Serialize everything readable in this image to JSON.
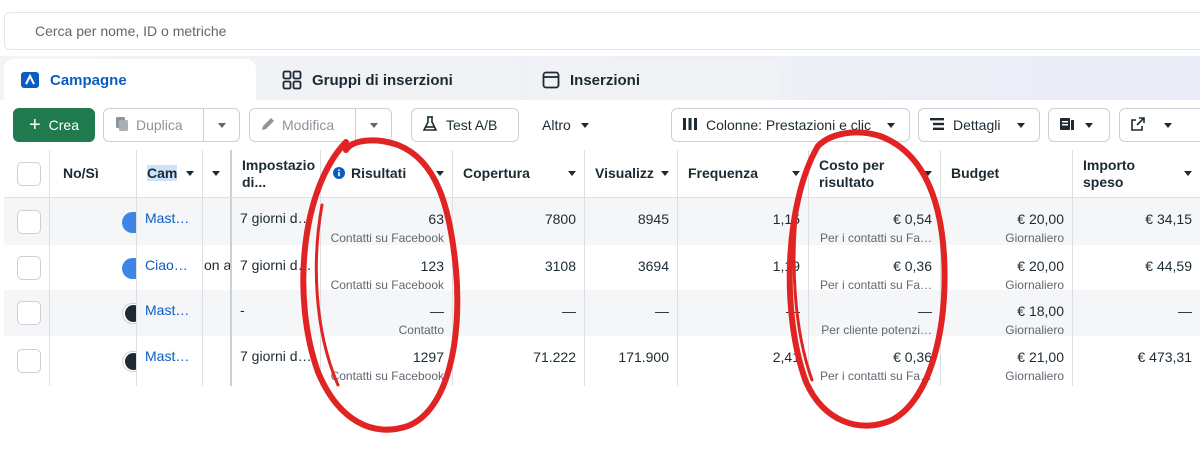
{
  "search": {
    "placeholder": "Cerca per nome, ID o metriche"
  },
  "tabs": [
    {
      "label": "Campagne",
      "icon": "campaign-icon",
      "active": true
    },
    {
      "label": "Gruppi di inserzioni",
      "icon": "grid-icon",
      "active": false
    },
    {
      "label": "Inserzioni",
      "icon": "ad-window-icon",
      "active": false
    }
  ],
  "toolbar": {
    "create_label": "Crea",
    "duplicate_label": "Duplica",
    "edit_label": "Modifica",
    "abtest_label": "Test A/B",
    "more_label": "Altro",
    "columns_label": "Colonne: Prestazioni e clic",
    "details_label": "Dettagli"
  },
  "columns": {
    "toggle": "No/Sì",
    "name": "Cam",
    "settings_line1": "Impostazio",
    "settings_line2": "di...",
    "results": "Risultati",
    "reach": "Copertura",
    "impressions": "Visualizz",
    "frequency": "Frequenza",
    "cpr_line1": "Costo per",
    "cpr_line2": "risultato",
    "budget": "Budget",
    "spent": "Importo speso"
  },
  "rows": [
    {
      "on": true,
      "name": "Mast…",
      "extra": "",
      "settings": "7 giorni d…",
      "results": "63",
      "results_sub": "Contatti su Facebook",
      "reach": "7800",
      "impressions": "8945",
      "frequency": "1,15",
      "cpr": "€ 0,54",
      "cpr_sub": "Per i contatti su Fa…",
      "budget": "€ 20,00",
      "budget_sub": "Giornaliero",
      "spent": "€ 34,15"
    },
    {
      "on": true,
      "name": "Ciao…",
      "extra": "on a",
      "settings": "7 giorni d…",
      "results": "123",
      "results_sub": "Contatti su Facebook",
      "reach": "3108",
      "impressions": "3694",
      "frequency": "1,19",
      "cpr": "€ 0,36",
      "cpr_sub": "Per i contatti su Fa…",
      "budget": "€ 20,00",
      "budget_sub": "Giornaliero",
      "spent": "€ 44,59"
    },
    {
      "on": false,
      "name": "Mast…",
      "extra": "",
      "settings": "-",
      "results": "—",
      "results_sub": "Contatto",
      "reach": "—",
      "impressions": "—",
      "frequency": "—",
      "cpr": "—",
      "cpr_sub": "Per cliente potenzi…",
      "budget": "€ 18,00",
      "budget_sub": "Giornaliero",
      "spent": "—"
    },
    {
      "on": false,
      "name": "Mast…",
      "extra": "",
      "settings": "7 giorni d…",
      "results": "1297",
      "results_sub": "Contatti su Facebook",
      "reach": "71.222",
      "impressions": "171.900",
      "frequency": "2,41",
      "cpr": "€ 0,36",
      "cpr_sub": "Per i contatti su Fa…",
      "budget": "€ 21,00",
      "budget_sub": "Giornaliero",
      "spent": "€ 473,31"
    }
  ],
  "colors": {
    "brand_blue": "#0a5dc2",
    "create_green": "#1f7a4d",
    "annotation_red": "#e02424",
    "toggle_on": "#3e86e6"
  }
}
